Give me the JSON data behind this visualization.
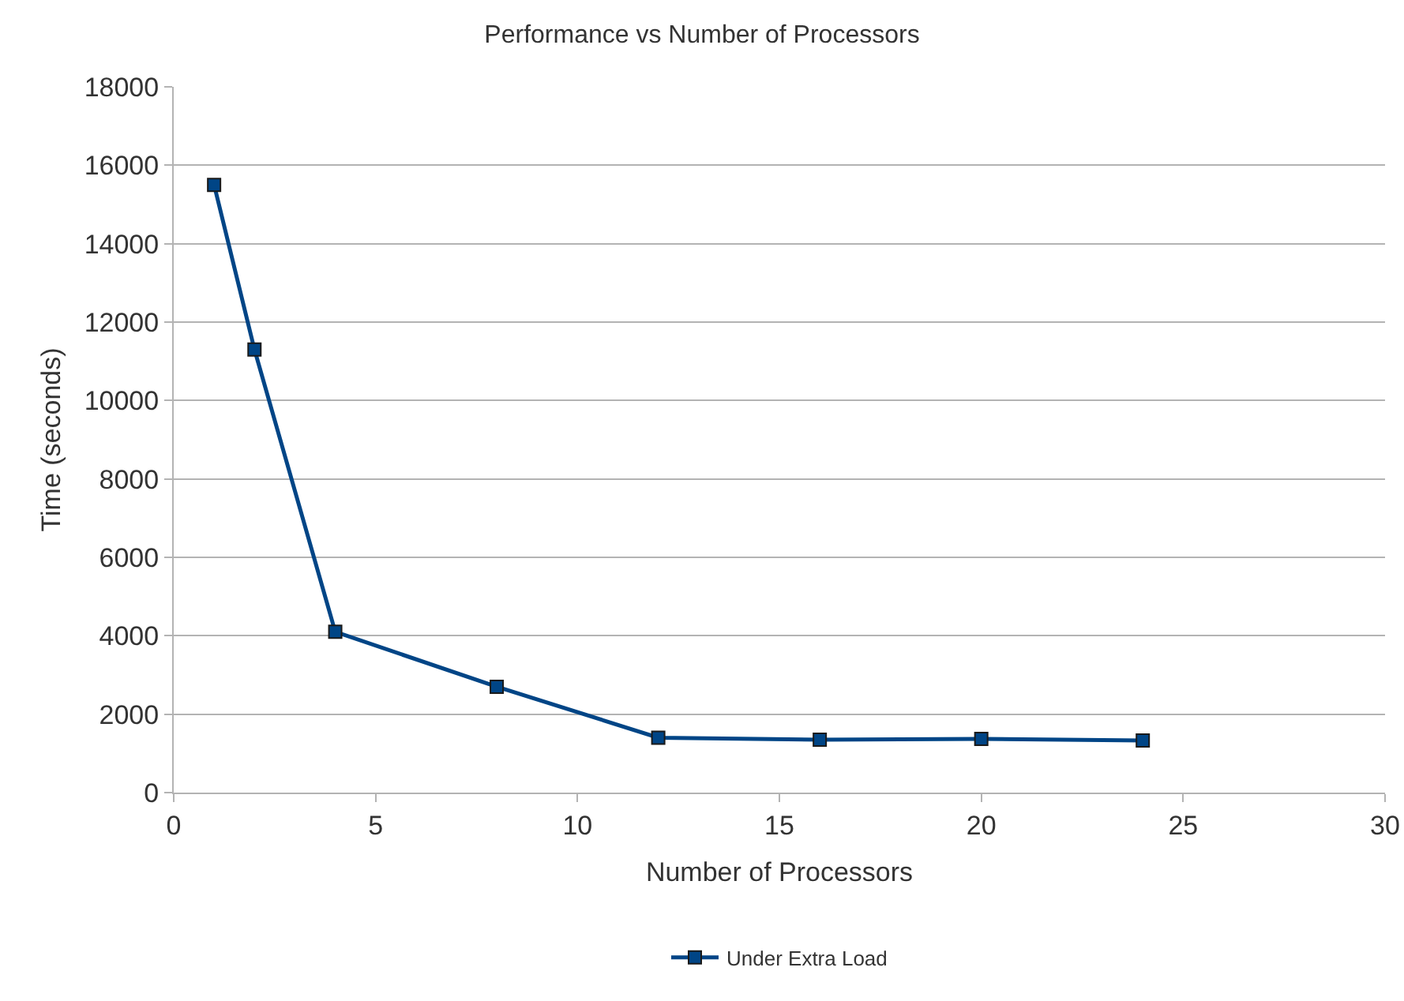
{
  "chart_data": {
    "type": "line",
    "title": "Performance vs Number of Processors",
    "xlabel": "Number of Processors",
    "ylabel": "Time (seconds)",
    "x": [
      1,
      2,
      4,
      8,
      12,
      16,
      20,
      24
    ],
    "series": [
      {
        "name": "Under Extra Load",
        "color": "#004586",
        "values": [
          15500,
          11300,
          4100,
          2700,
          1400,
          1350,
          1370,
          1330
        ]
      }
    ],
    "xlim": [
      0,
      30
    ],
    "xticks": [
      0,
      5,
      10,
      15,
      20,
      25,
      30
    ],
    "ylim": [
      0,
      18000
    ],
    "yticks": [
      0,
      2000,
      4000,
      6000,
      8000,
      10000,
      12000,
      14000,
      16000,
      18000
    ],
    "grid": "y",
    "legend": "bottom",
    "marker": "square",
    "line_style": "solid"
  }
}
